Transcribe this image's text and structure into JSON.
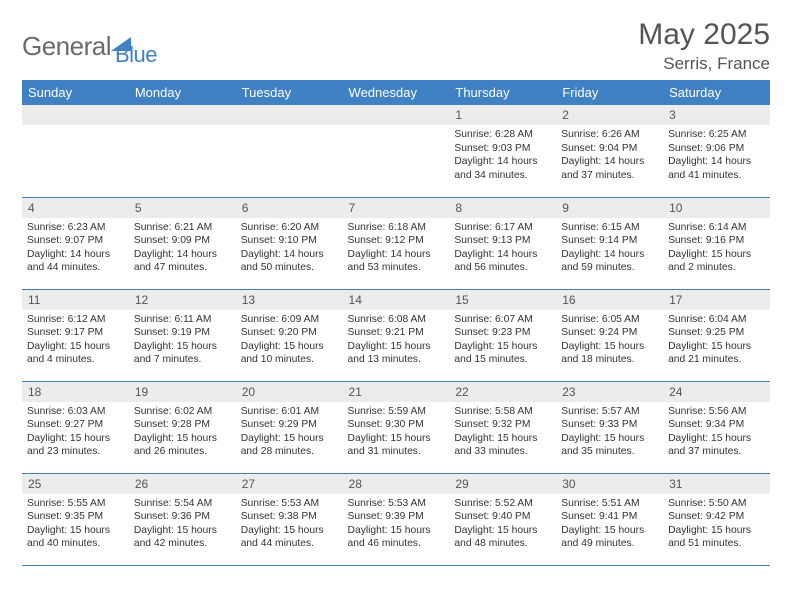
{
  "logo": {
    "part1": "General",
    "part2": "Blue"
  },
  "title": "May 2025",
  "location": "Serris, France",
  "colors": {
    "header_bg": "#3f81c3",
    "header_text": "#ffffff",
    "daynum_bg": "#ececec",
    "text": "#333333",
    "logo_gray": "#6b6b6b",
    "logo_blue": "#3f81c3"
  },
  "weekdays": [
    "Sunday",
    "Monday",
    "Tuesday",
    "Wednesday",
    "Thursday",
    "Friday",
    "Saturday"
  ],
  "weeks": [
    [
      null,
      null,
      null,
      null,
      {
        "n": "1",
        "sr": "6:28 AM",
        "ss": "9:03 PM",
        "dl": "14 hours and 34 minutes."
      },
      {
        "n": "2",
        "sr": "6:26 AM",
        "ss": "9:04 PM",
        "dl": "14 hours and 37 minutes."
      },
      {
        "n": "3",
        "sr": "6:25 AM",
        "ss": "9:06 PM",
        "dl": "14 hours and 41 minutes."
      }
    ],
    [
      {
        "n": "4",
        "sr": "6:23 AM",
        "ss": "9:07 PM",
        "dl": "14 hours and 44 minutes."
      },
      {
        "n": "5",
        "sr": "6:21 AM",
        "ss": "9:09 PM",
        "dl": "14 hours and 47 minutes."
      },
      {
        "n": "6",
        "sr": "6:20 AM",
        "ss": "9:10 PM",
        "dl": "14 hours and 50 minutes."
      },
      {
        "n": "7",
        "sr": "6:18 AM",
        "ss": "9:12 PM",
        "dl": "14 hours and 53 minutes."
      },
      {
        "n": "8",
        "sr": "6:17 AM",
        "ss": "9:13 PM",
        "dl": "14 hours and 56 minutes."
      },
      {
        "n": "9",
        "sr": "6:15 AM",
        "ss": "9:14 PM",
        "dl": "14 hours and 59 minutes."
      },
      {
        "n": "10",
        "sr": "6:14 AM",
        "ss": "9:16 PM",
        "dl": "15 hours and 2 minutes."
      }
    ],
    [
      {
        "n": "11",
        "sr": "6:12 AM",
        "ss": "9:17 PM",
        "dl": "15 hours and 4 minutes."
      },
      {
        "n": "12",
        "sr": "6:11 AM",
        "ss": "9:19 PM",
        "dl": "15 hours and 7 minutes."
      },
      {
        "n": "13",
        "sr": "6:09 AM",
        "ss": "9:20 PM",
        "dl": "15 hours and 10 minutes."
      },
      {
        "n": "14",
        "sr": "6:08 AM",
        "ss": "9:21 PM",
        "dl": "15 hours and 13 minutes."
      },
      {
        "n": "15",
        "sr": "6:07 AM",
        "ss": "9:23 PM",
        "dl": "15 hours and 15 minutes."
      },
      {
        "n": "16",
        "sr": "6:05 AM",
        "ss": "9:24 PM",
        "dl": "15 hours and 18 minutes."
      },
      {
        "n": "17",
        "sr": "6:04 AM",
        "ss": "9:25 PM",
        "dl": "15 hours and 21 minutes."
      }
    ],
    [
      {
        "n": "18",
        "sr": "6:03 AM",
        "ss": "9:27 PM",
        "dl": "15 hours and 23 minutes."
      },
      {
        "n": "19",
        "sr": "6:02 AM",
        "ss": "9:28 PM",
        "dl": "15 hours and 26 minutes."
      },
      {
        "n": "20",
        "sr": "6:01 AM",
        "ss": "9:29 PM",
        "dl": "15 hours and 28 minutes."
      },
      {
        "n": "21",
        "sr": "5:59 AM",
        "ss": "9:30 PM",
        "dl": "15 hours and 31 minutes."
      },
      {
        "n": "22",
        "sr": "5:58 AM",
        "ss": "9:32 PM",
        "dl": "15 hours and 33 minutes."
      },
      {
        "n": "23",
        "sr": "5:57 AM",
        "ss": "9:33 PM",
        "dl": "15 hours and 35 minutes."
      },
      {
        "n": "24",
        "sr": "5:56 AM",
        "ss": "9:34 PM",
        "dl": "15 hours and 37 minutes."
      }
    ],
    [
      {
        "n": "25",
        "sr": "5:55 AM",
        "ss": "9:35 PM",
        "dl": "15 hours and 40 minutes."
      },
      {
        "n": "26",
        "sr": "5:54 AM",
        "ss": "9:36 PM",
        "dl": "15 hours and 42 minutes."
      },
      {
        "n": "27",
        "sr": "5:53 AM",
        "ss": "9:38 PM",
        "dl": "15 hours and 44 minutes."
      },
      {
        "n": "28",
        "sr": "5:53 AM",
        "ss": "9:39 PM",
        "dl": "15 hours and 46 minutes."
      },
      {
        "n": "29",
        "sr": "5:52 AM",
        "ss": "9:40 PM",
        "dl": "15 hours and 48 minutes."
      },
      {
        "n": "30",
        "sr": "5:51 AM",
        "ss": "9:41 PM",
        "dl": "15 hours and 49 minutes."
      },
      {
        "n": "31",
        "sr": "5:50 AM",
        "ss": "9:42 PM",
        "dl": "15 hours and 51 minutes."
      }
    ]
  ],
  "labels": {
    "sunrise": "Sunrise: ",
    "sunset": "Sunset: ",
    "daylight": "Daylight: "
  }
}
